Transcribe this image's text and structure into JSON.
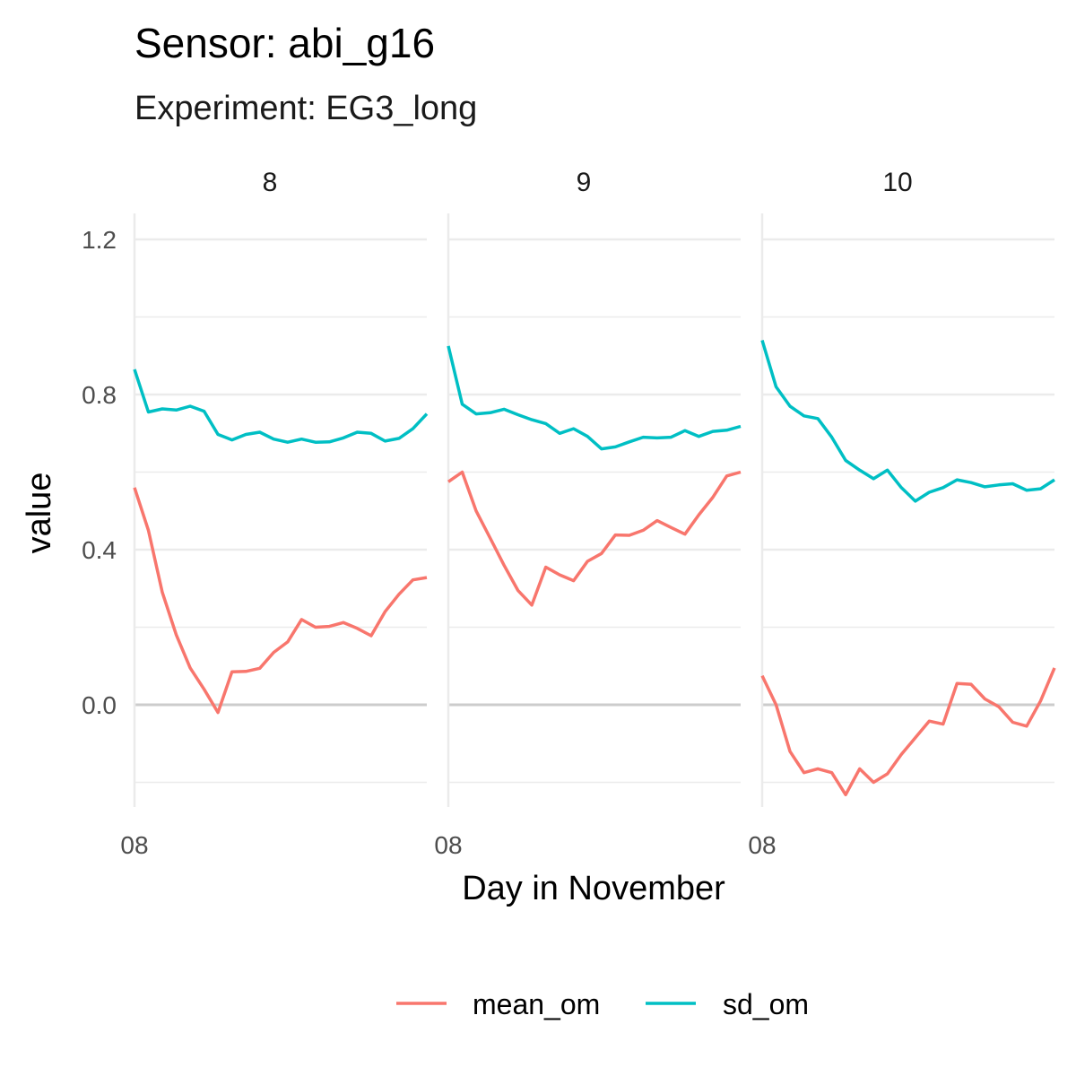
{
  "chart_data": {
    "type": "line",
    "title": "Sensor: abi_g16",
    "subtitle": "Experiment: EG3_long",
    "xlabel": "Day in November",
    "ylabel": "value",
    "ylim": [
      -0.26,
      1.27
    ],
    "y_ticks": [
      "1.2",
      "0.8",
      "0.4",
      "0.0"
    ],
    "y_tick_values": [
      1.2,
      0.8,
      0.4,
      0.0
    ],
    "x_tick_label": "08",
    "grid": true,
    "legend_position": "bottom",
    "series_colors": {
      "mean_om": "#F8766D",
      "sd_om": "#00BFC4"
    },
    "legend": [
      "mean_om",
      "sd_om"
    ],
    "panels": [
      {
        "label": "8",
        "series": [
          {
            "name": "mean_om",
            "values": [
              0.56,
              0.45,
              0.29,
              0.18,
              0.095,
              0.04,
              -0.02,
              0.085,
              0.086,
              0.094,
              0.135,
              0.162,
              0.22,
              0.2,
              0.202,
              0.212,
              0.197,
              0.178,
              0.24,
              0.285,
              0.322,
              0.328
            ]
          },
          {
            "name": "sd_om",
            "values": [
              0.865,
              0.755,
              0.763,
              0.76,
              0.77,
              0.757,
              0.697,
              0.683,
              0.697,
              0.703,
              0.685,
              0.677,
              0.685,
              0.677,
              0.678,
              0.688,
              0.703,
              0.7,
              0.68,
              0.687,
              0.712,
              0.75
            ]
          }
        ]
      },
      {
        "label": "9",
        "series": [
          {
            "name": "mean_om",
            "values": [
              0.575,
              0.6,
              0.5,
              0.43,
              0.36,
              0.295,
              0.257,
              0.355,
              0.335,
              0.32,
              0.37,
              0.39,
              0.438,
              0.437,
              0.45,
              0.475,
              0.457,
              0.44,
              0.49,
              0.535,
              0.59,
              0.6
            ]
          },
          {
            "name": "sd_om",
            "values": [
              0.925,
              0.775,
              0.75,
              0.753,
              0.762,
              0.748,
              0.735,
              0.725,
              0.7,
              0.712,
              0.692,
              0.66,
              0.665,
              0.678,
              0.69,
              0.688,
              0.69,
              0.707,
              0.692,
              0.705,
              0.708,
              0.718
            ]
          }
        ]
      },
      {
        "label": "10",
        "series": [
          {
            "name": "mean_om",
            "values": [
              0.075,
              0.0,
              -0.12,
              -0.175,
              -0.165,
              -0.175,
              -0.232,
              -0.165,
              -0.2,
              -0.178,
              -0.128,
              -0.085,
              -0.042,
              -0.05,
              0.055,
              0.053,
              0.015,
              -0.005,
              -0.045,
              -0.055,
              0.01,
              0.095
            ]
          },
          {
            "name": "sd_om",
            "values": [
              0.94,
              0.82,
              0.77,
              0.745,
              0.738,
              0.69,
              0.63,
              0.605,
              0.583,
              0.605,
              0.56,
              0.525,
              0.548,
              0.56,
              0.58,
              0.573,
              0.562,
              0.567,
              0.57,
              0.553,
              0.557,
              0.58
            ]
          }
        ]
      }
    ]
  }
}
